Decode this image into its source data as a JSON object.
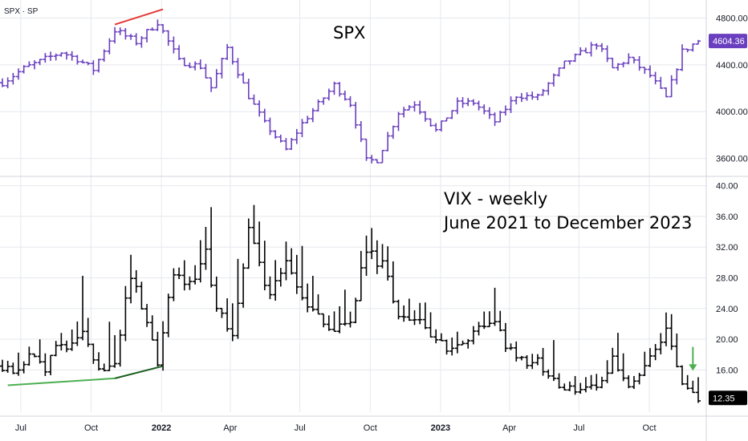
{
  "symbol": "SPX · SP",
  "top_title": "SPX",
  "bottom_title_line1": "VIX - weekly",
  "bottom_title_line2": "June 2021 to December 2023",
  "colors": {
    "spx_bars": "#6a3fbf",
    "vix_bars": "#000000",
    "spx_tag": "#6a3fbf",
    "vix_tag": "#000000",
    "trend_red": "#e53935",
    "trend_green_light": "#4caf50",
    "trend_green_dark": "#1b5e20",
    "arrow": "#4caf50",
    "grid": "#e6e8ee"
  },
  "chart_data": [
    {
      "type": "ohlc",
      "name": "SPX",
      "y_ticks": [
        "4800.00",
        "4400.00",
        "4000.00",
        "3600.00"
      ],
      "ylim": [
        3460,
        4920
      ],
      "last_value_label": "4604.36",
      "x_range": [
        "2021-06-07",
        "2023-12-04"
      ],
      "x_tick_labels": [
        {
          "date": "2021-07-01",
          "label": "Jul",
          "year": false
        },
        {
          "date": "2021-10-01",
          "label": "Oct",
          "year": false
        },
        {
          "date": "2022-01-01",
          "label": "2022",
          "year": true
        },
        {
          "date": "2022-04-01",
          "label": "Apr",
          "year": false
        },
        {
          "date": "2022-07-01",
          "label": "Jul",
          "year": false
        },
        {
          "date": "2022-10-01",
          "label": "Oct",
          "year": false
        },
        {
          "date": "2023-01-01",
          "label": "2023",
          "year": true
        },
        {
          "date": "2023-04-01",
          "label": "Apr",
          "year": false
        },
        {
          "date": "2023-07-01",
          "label": "Jul",
          "year": false
        },
        {
          "date": "2023-10-01",
          "label": "Oct",
          "year": false
        }
      ],
      "trendline": {
        "start": [
          "2021-11-01",
          4745
        ],
        "end": [
          "2022-01-03",
          4820
        ]
      },
      "close_path": [
        [
          "2021-06-07",
          4247
        ],
        [
          "2021-07-05",
          4370
        ],
        [
          "2021-08-23",
          4509
        ],
        [
          "2021-09-13",
          4450
        ],
        [
          "2021-10-04",
          4360
        ],
        [
          "2021-11-01",
          4697
        ],
        [
          "2021-11-29",
          4595
        ],
        [
          "2021-12-27",
          4766
        ],
        [
          "2022-01-24",
          4431
        ],
        [
          "2022-02-21",
          4385
        ],
        [
          "2022-03-07",
          4205
        ],
        [
          "2022-03-28",
          4545
        ],
        [
          "2022-04-25",
          4131
        ],
        [
          "2022-05-16",
          3901
        ],
        [
          "2022-06-13",
          3675
        ],
        [
          "2022-07-04",
          3899
        ],
        [
          "2022-08-15",
          4228
        ],
        [
          "2022-09-05",
          4067
        ],
        [
          "2022-09-26",
          3585
        ],
        [
          "2022-10-10",
          3583
        ],
        [
          "2022-11-07",
          3992
        ],
        [
          "2022-11-28",
          4071
        ],
        [
          "2022-12-26",
          3839
        ],
        [
          "2023-01-23",
          4070
        ],
        [
          "2023-02-13",
          4079
        ],
        [
          "2023-03-13",
          3916
        ],
        [
          "2023-04-10",
          4137
        ],
        [
          "2023-05-08",
          4124
        ],
        [
          "2023-06-12",
          4410
        ],
        [
          "2023-07-24",
          4582
        ],
        [
          "2023-08-14",
          4370
        ],
        [
          "2023-09-04",
          4457
        ],
        [
          "2023-10-02",
          4308
        ],
        [
          "2023-10-23",
          4117
        ],
        [
          "2023-11-13",
          4514
        ],
        [
          "2023-12-04",
          4604
        ]
      ]
    },
    {
      "type": "ohlc",
      "name": "VIX",
      "y_ticks": [
        "40.00",
        "36.00",
        "32.00",
        "28.00",
        "24.00",
        "20.00",
        "16.00"
      ],
      "ylim": [
        10.5,
        41
      ],
      "last_value_label": "12.35",
      "x_range": [
        "2021-06-07",
        "2023-12-04"
      ],
      "support_lines": [
        {
          "start": [
            "2021-06-14",
            14.0
          ],
          "end": [
            "2021-11-01",
            14.9
          ]
        },
        {
          "start": [
            "2021-11-01",
            14.9
          ],
          "end": [
            "2022-01-03",
            16.5
          ]
        }
      ],
      "arrow": {
        "date": "2023-11-27",
        "from": 19.0,
        "to": 16.0
      },
      "close_path": [
        [
          "2021-06-07",
          16.5
        ],
        [
          "2021-06-21",
          15.6
        ],
        [
          "2021-07-12",
          18.0
        ],
        [
          "2021-08-02",
          16.2
        ],
        [
          "2021-08-16",
          18.6
        ],
        [
          "2021-09-06",
          18.9
        ],
        [
          "2021-09-20",
          21.0
        ],
        [
          "2021-10-11",
          16.3
        ],
        [
          "2021-11-01",
          16.5
        ],
        [
          "2021-11-22",
          28.6
        ],
        [
          "2021-12-13",
          21.6
        ],
        [
          "2021-12-27",
          17.2
        ],
        [
          "2022-01-17",
          28.9
        ],
        [
          "2022-02-07",
          27.4
        ],
        [
          "2022-02-28",
          31.0
        ],
        [
          "2022-03-14",
          23.9
        ],
        [
          "2022-04-04",
          21.2
        ],
        [
          "2022-04-25",
          33.4
        ],
        [
          "2022-05-23",
          25.7
        ],
        [
          "2022-06-13",
          31.1
        ],
        [
          "2022-07-04",
          24.6
        ],
        [
          "2022-08-15",
          20.6
        ],
        [
          "2022-09-05",
          22.8
        ],
        [
          "2022-09-26",
          31.6
        ],
        [
          "2022-10-17",
          29.7
        ],
        [
          "2022-11-07",
          22.5
        ],
        [
          "2022-12-05",
          22.6
        ],
        [
          "2023-01-09",
          18.4
        ],
        [
          "2023-02-06",
          20.5
        ],
        [
          "2023-03-13",
          21.7
        ],
        [
          "2023-04-10",
          17.1
        ],
        [
          "2023-05-08",
          17.0
        ],
        [
          "2023-06-12",
          13.5
        ],
        [
          "2023-07-24",
          13.6
        ],
        [
          "2023-08-14",
          17.3
        ],
        [
          "2023-09-04",
          13.8
        ],
        [
          "2023-10-02",
          17.5
        ],
        [
          "2023-10-23",
          21.3
        ],
        [
          "2023-11-13",
          13.8
        ],
        [
          "2023-12-04",
          12.35
        ]
      ]
    }
  ]
}
